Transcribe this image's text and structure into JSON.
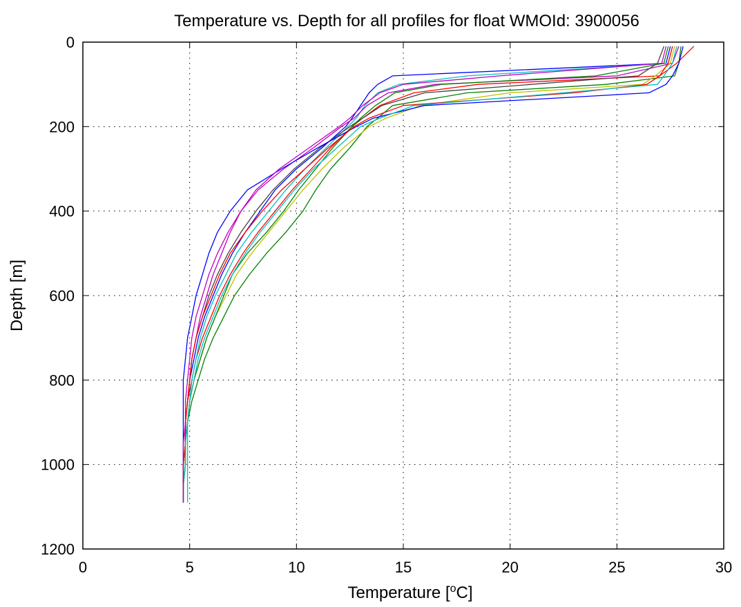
{
  "chart_data": {
    "type": "line",
    "title": "Temperature vs. Depth for all profiles for float WMOId: 3900056",
    "xlabel": "Temperature [",
    "xlabel_sup": "o",
    "xlabel_unit": "C]",
    "ylabel": "Depth [m]",
    "xlim": [
      0,
      30
    ],
    "ylim": [
      0,
      1200
    ],
    "y_reversed": true,
    "xticks": [
      "0",
      "5",
      "10",
      "15",
      "20",
      "25",
      "30"
    ],
    "yticks": [
      "0",
      "200",
      "400",
      "600",
      "800",
      "1000",
      "1200"
    ],
    "grid": true,
    "legend": "none",
    "depth_levels": [
      10,
      50,
      80,
      100,
      120,
      150,
      180,
      200,
      250,
      300,
      350,
      400,
      450,
      500,
      550,
      600,
      650,
      700,
      750,
      800,
      850,
      900,
      950,
      1000,
      1050,
      1090
    ],
    "series": [
      {
        "color": "#0000ff",
        "values": [
          27.5,
          27.3,
          14.5,
          13.8,
          13.4,
          13.0,
          12.6,
          12.3,
          11.2,
          10.0,
          9.0,
          8.3,
          7.6,
          7.0,
          6.5,
          6.1,
          5.7,
          5.4,
          5.2,
          5.0,
          4.9,
          4.8,
          4.8,
          4.7,
          4.7,
          4.7
        ]
      },
      {
        "color": "#008000",
        "values": [
          28.0,
          27.9,
          27.7,
          24.5,
          18.0,
          14.5,
          13.8,
          13.3,
          12.5,
          11.6,
          10.9,
          10.3,
          9.5,
          8.6,
          7.8,
          7.1,
          6.6,
          6.1,
          5.7,
          5.4,
          5.1,
          4.9,
          4.8,
          4.8,
          4.7,
          4.7
        ]
      },
      {
        "color": "#ff0000",
        "values": [
          28.6,
          27.8,
          27.0,
          18.5,
          15.5,
          13.9,
          13.1,
          12.6,
          11.6,
          10.7,
          9.8,
          9.0,
          8.2,
          7.5,
          6.9,
          6.4,
          6.0,
          5.6,
          5.3,
          5.1,
          4.9,
          4.8,
          4.8,
          4.7,
          4.7,
          4.7
        ]
      },
      {
        "color": "#00bfbf",
        "values": [
          27.6,
          27.4,
          18.0,
          14.8,
          13.8,
          13.2,
          12.8,
          12.4,
          11.4,
          10.4,
          9.5,
          8.7,
          7.9,
          7.2,
          6.7,
          6.2,
          5.8,
          5.5,
          5.3,
          5.1,
          5.0,
          4.9,
          4.9,
          4.9,
          4.9,
          4.9
        ]
      },
      {
        "color": "#bf00bf",
        "values": [
          27.9,
          27.6,
          25.0,
          16.5,
          14.3,
          13.3,
          12.7,
          12.1,
          10.8,
          9.4,
          8.2,
          7.4,
          6.9,
          6.5,
          6.1,
          5.8,
          5.5,
          5.3,
          5.1,
          5.0,
          4.9,
          4.8,
          4.8,
          4.7,
          4.7,
          4.7
        ]
      },
      {
        "color": "#bfbf00",
        "values": [
          27.7,
          27.5,
          26.8,
          26.2,
          20.0,
          15.8,
          14.2,
          13.4,
          12.2,
          11.2,
          10.3,
          9.5,
          8.7,
          7.9,
          7.2,
          6.7,
          6.2,
          5.8,
          5.5,
          5.2,
          5.0,
          4.9,
          4.8,
          4.8,
          4.7,
          4.7
        ]
      },
      {
        "color": "#404040",
        "values": [
          27.2,
          26.9,
          26.0,
          21.0,
          16.0,
          14.0,
          13.1,
          12.5,
          11.1,
          9.9,
          8.9,
          8.1,
          7.4,
          6.8,
          6.3,
          5.9,
          5.6,
          5.3,
          5.1,
          5.0,
          4.9,
          4.8,
          4.8,
          4.7,
          4.7,
          4.7
        ]
      },
      {
        "color": "#0000ff",
        "values": [
          28.1,
          27.9,
          27.6,
          27.3,
          26.5,
          16.0,
          13.6,
          12.8,
          11.0,
          9.3,
          7.7,
          6.9,
          6.3,
          5.9,
          5.6,
          5.3,
          5.1,
          4.9,
          4.8,
          4.7,
          4.7,
          4.7,
          4.7,
          4.7,
          4.7,
          4.7
        ]
      },
      {
        "color": "#008000",
        "values": [
          27.4,
          27.2,
          24.0,
          16.8,
          14.6,
          13.7,
          13.0,
          12.6,
          11.7,
          10.9,
          10.1,
          9.4,
          8.6,
          7.7,
          7.0,
          6.6,
          6.2,
          5.8,
          5.5,
          5.2,
          5.0,
          4.9,
          4.8,
          4.8,
          4.7,
          4.7
        ]
      },
      {
        "color": "#ff0000",
        "values": [
          27.6,
          27.4,
          27.0,
          26.4,
          23.0,
          15.0,
          13.4,
          12.7,
          11.5,
          10.4,
          9.3,
          8.4,
          7.6,
          6.9,
          6.4,
          6.0,
          5.6,
          5.3,
          5.1,
          5.0,
          4.9,
          4.8,
          4.8,
          4.7,
          4.7,
          4.7
        ]
      },
      {
        "color": "#00bfbf",
        "values": [
          27.8,
          27.6,
          27.2,
          26.9,
          22.5,
          15.5,
          13.9,
          13.0,
          11.9,
          10.8,
          9.9,
          9.1,
          8.3,
          7.6,
          7.0,
          6.5,
          6.1,
          5.7,
          5.4,
          5.2,
          5.0,
          4.9,
          4.8,
          4.8,
          4.7,
          4.7
        ]
      },
      {
        "color": "#bf00bf",
        "values": [
          27.3,
          27.1,
          19.5,
          15.0,
          13.9,
          13.1,
          12.5,
          12.0,
          10.6,
          9.2,
          8.1,
          7.4,
          6.8,
          6.3,
          5.9,
          5.6,
          5.3,
          5.1,
          5.0,
          4.9,
          4.8,
          4.8,
          4.7,
          4.7,
          4.7,
          4.7
        ]
      }
    ]
  }
}
